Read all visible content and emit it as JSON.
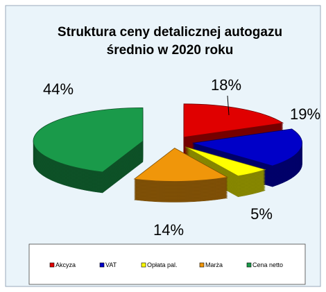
{
  "chart_data": {
    "type": "pie3d",
    "title": "Struktura ceny detalicznej autogazu średnio w 2020 roku",
    "categories": [
      "Akcyza",
      "VAT",
      "Opłata pal.",
      "Marża",
      "Cena netto"
    ],
    "values": [
      18,
      19,
      5,
      14,
      44
    ],
    "value_labels": [
      "18%",
      "19%",
      "5%",
      "14%",
      "44%"
    ],
    "colors": [
      "#e00000",
      "#0000c8",
      "#ffff00",
      "#f0960a",
      "#1a9a4a"
    ],
    "legend": "bottom"
  }
}
